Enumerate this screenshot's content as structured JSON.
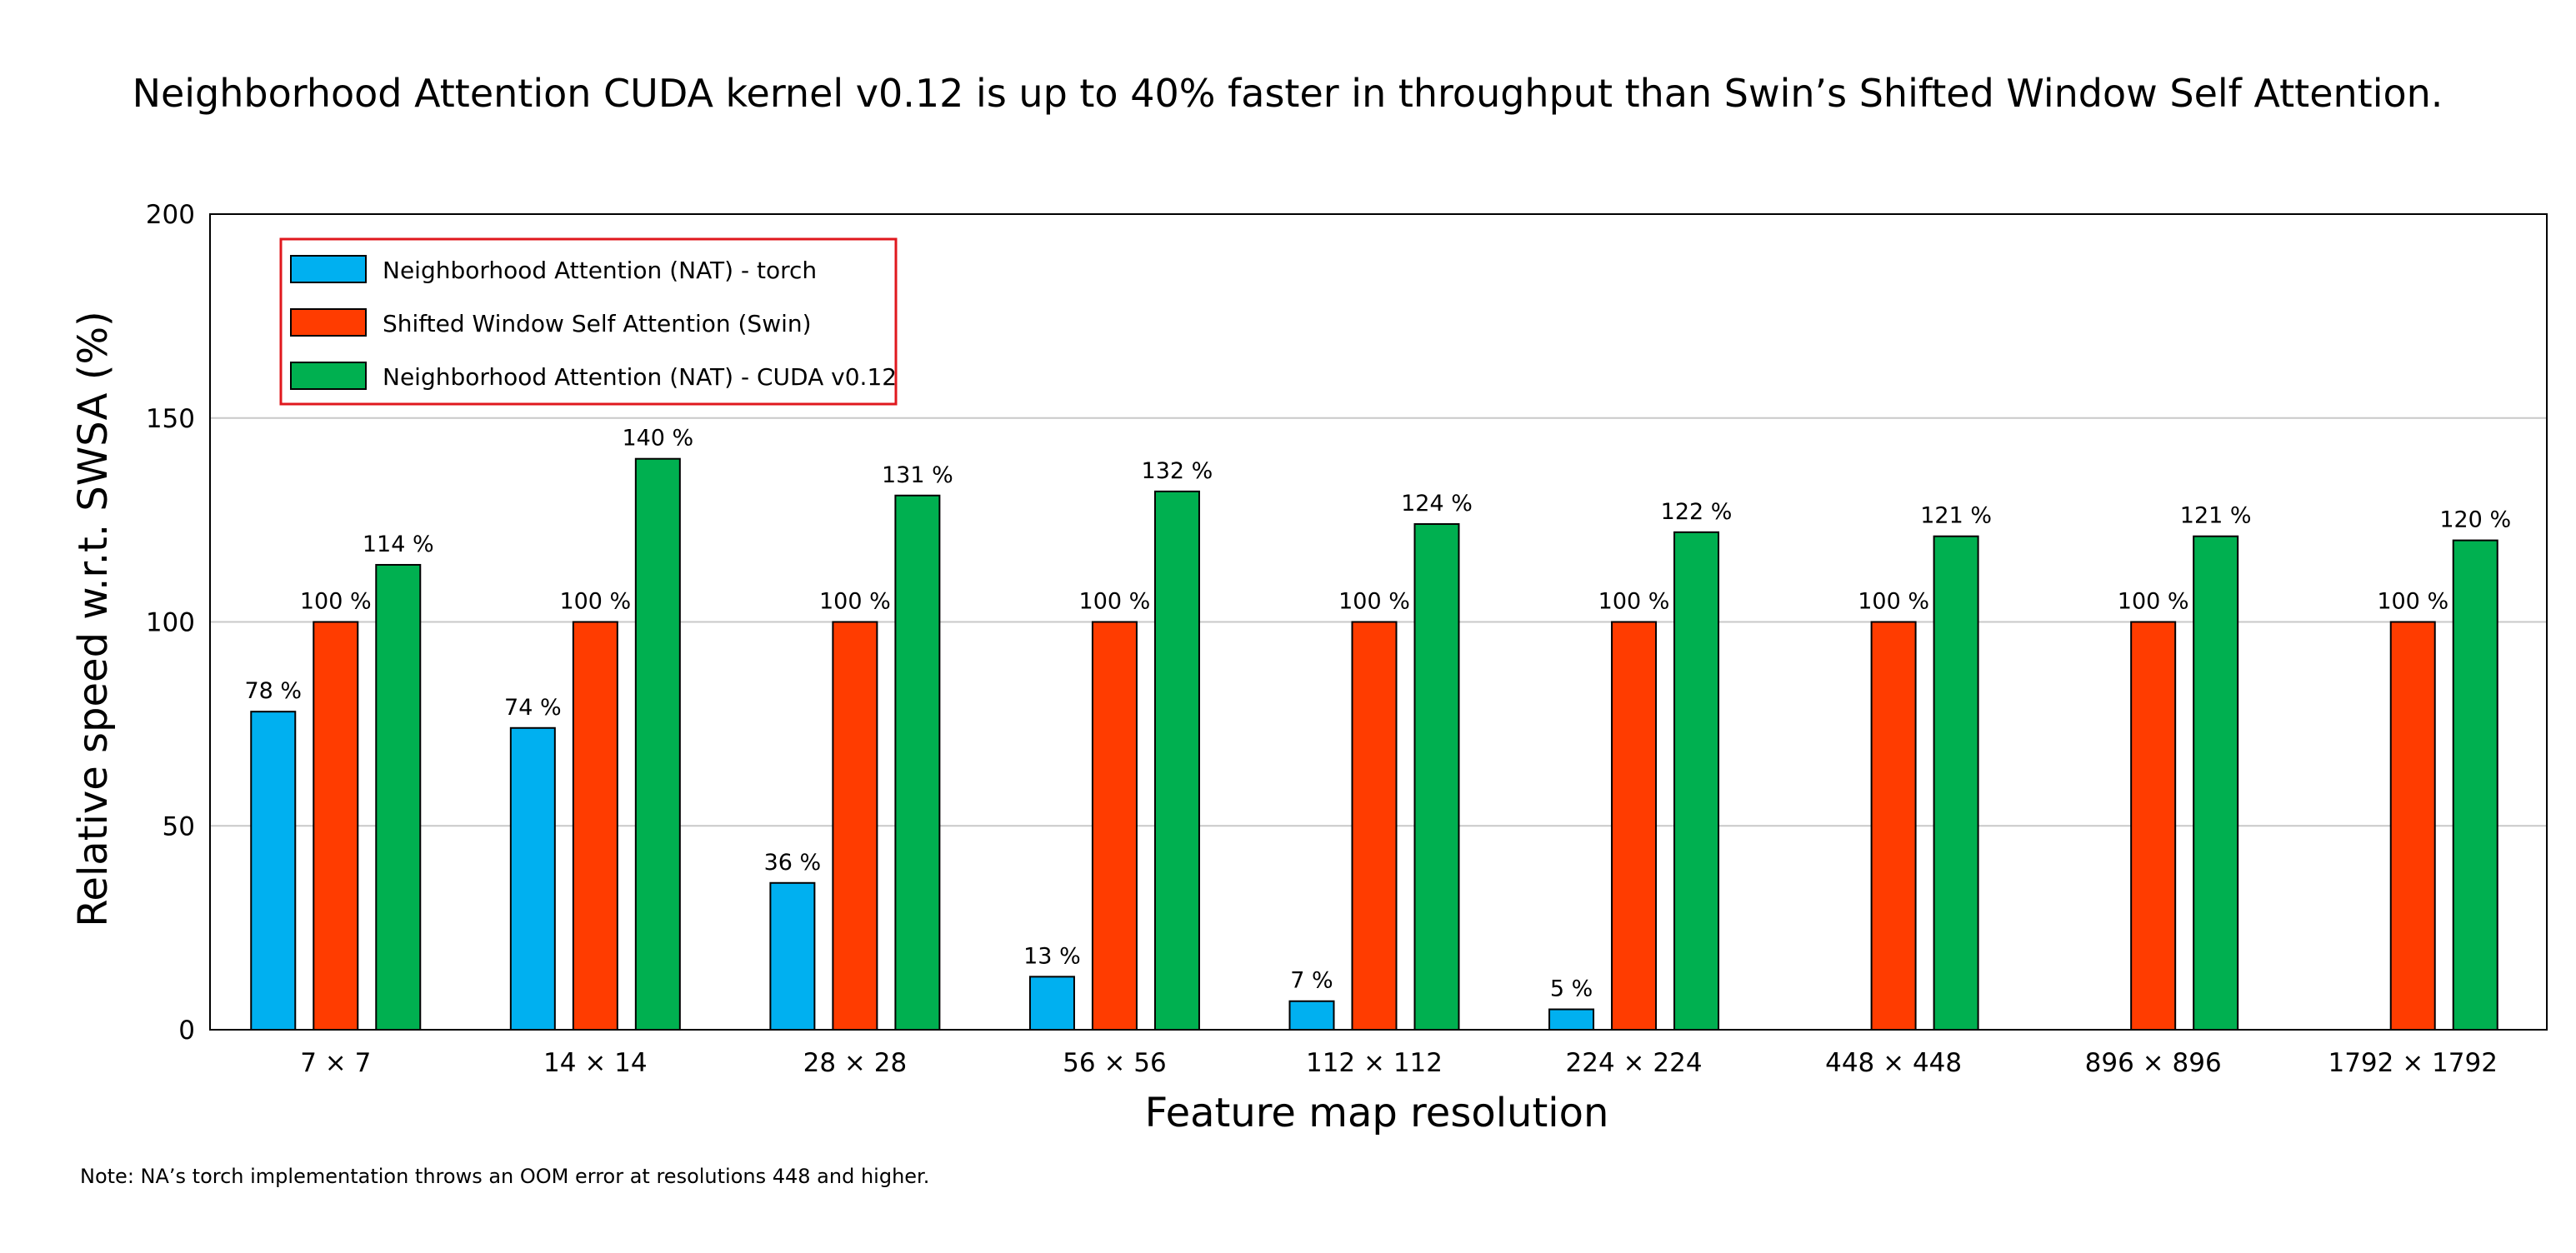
{
  "chart_data": {
    "type": "bar",
    "title": "Neighborhood Attention CUDA kernel v0.12 is up to 40% faster in throughput than Swin’s Shifted Window Self Attention.",
    "xlabel": "Feature map resolution",
    "ylabel": "Relative speed w.r.t. SWSA (%)",
    "ylim": [
      0,
      200
    ],
    "yticks": [
      0,
      50,
      100,
      150,
      200
    ],
    "grid": "horizontal",
    "legend_position": "top-left",
    "categories": [
      "7 × 7",
      "14 × 14",
      "28 × 28",
      "56 × 56",
      "112 × 112",
      "224 × 224",
      "448 × 448",
      "896 × 896",
      "1792 × 1792"
    ],
    "series": [
      {
        "name": "Neighborhood Attention (NAT) - torch",
        "color": "#00b0f0",
        "values": [
          78,
          74,
          36,
          13,
          7,
          5,
          null,
          null,
          null
        ],
        "labels": [
          "78 %",
          "74 %",
          "36 %",
          "13 %",
          "7 %",
          "5 %",
          "",
          "",
          ""
        ]
      },
      {
        "name": "Shifted Window Self Attention (Swin)",
        "color": "#ff3c00",
        "values": [
          100,
          100,
          100,
          100,
          100,
          100,
          100,
          100,
          100
        ],
        "labels": [
          "100 %",
          "100 %",
          "100 %",
          "100 %",
          "100 %",
          "100 %",
          "100 %",
          "100 %",
          "100 %"
        ]
      },
      {
        "name": "Neighborhood Attention (NAT) - CUDA v0.12",
        "color": "#00b050",
        "values": [
          114,
          140,
          131,
          132,
          124,
          122,
          121,
          121,
          120
        ],
        "labels": [
          "114 %",
          "140 %",
          "131 %",
          "132 %",
          "124 %",
          "122 %",
          "121 %",
          "121 %",
          "120 %"
        ]
      }
    ],
    "legend_border_color": "#e0181e",
    "gridline_color": "#c8c8c8",
    "note": "Note:  NA’s torch implementation throws an OOM error at resolutions 448 and higher."
  }
}
